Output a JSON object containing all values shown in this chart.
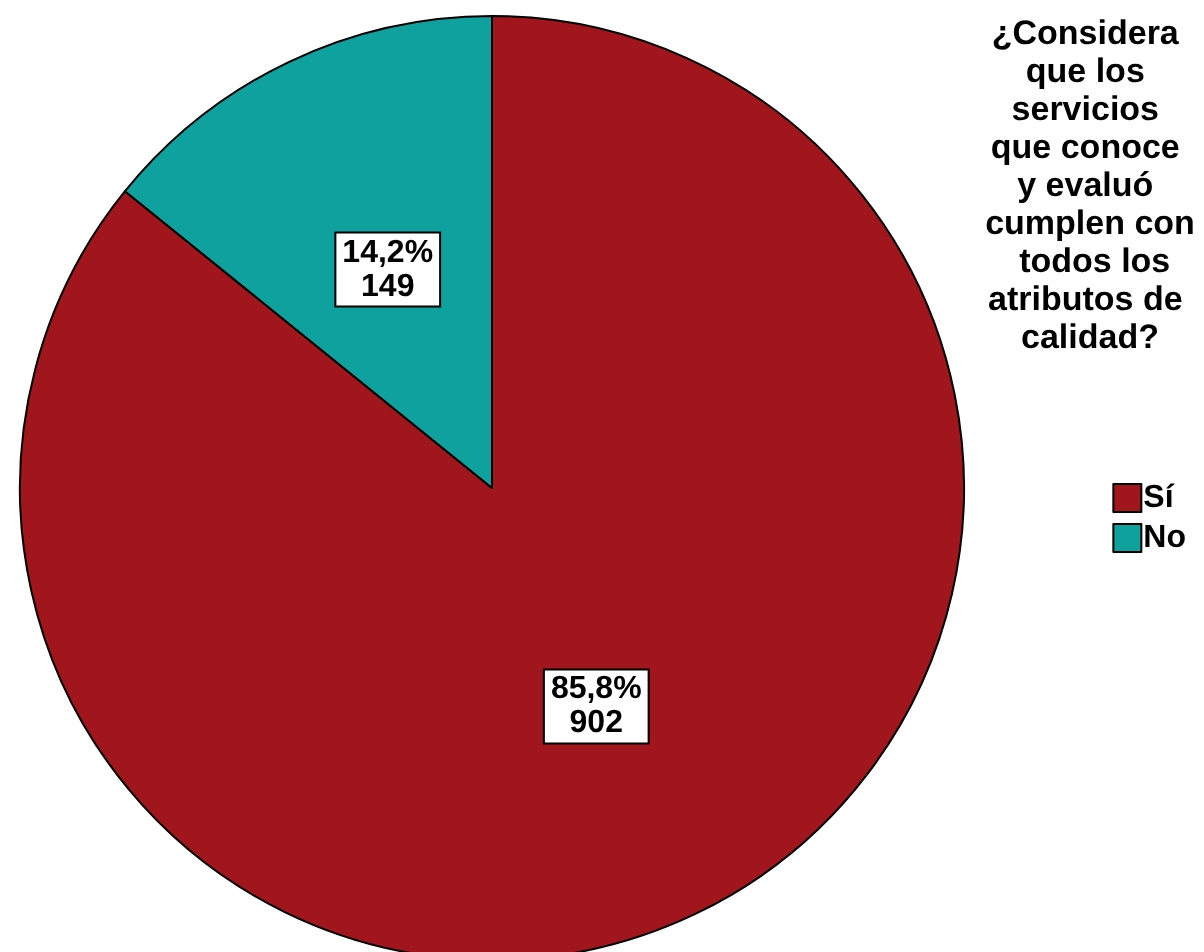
{
  "chart_data": {
    "type": "pie",
    "legend_title": "¿Considera que los servicios que conoce y evaluó cumplen con  todos los atributos de calidad?",
    "categories": [
      "Sí",
      "No"
    ],
    "values": [
      902,
      149
    ],
    "colors": [
      "#a0161c",
      "#0fa19e"
    ],
    "value_labels": [
      "85,8%\n902",
      "14,2%\n149"
    ],
    "legend": "right"
  }
}
